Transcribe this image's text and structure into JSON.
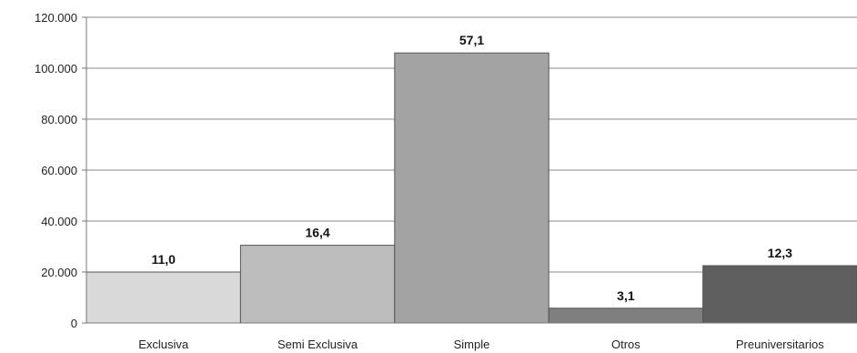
{
  "chart_data": {
    "type": "bar",
    "title": "",
    "xlabel": "",
    "ylabel": "",
    "categories": [
      "Exclusiva",
      "Semi Exclusiva",
      "Simple",
      "Otros",
      "Preuniversitarios"
    ],
    "values": [
      20000,
      30500,
      106000,
      5800,
      22500
    ],
    "data_labels": [
      "11,0",
      "16,4",
      "57,1",
      "3,1",
      "12,3"
    ],
    "colors": [
      "#d9d9d9",
      "#bdbdbd",
      "#a3a3a3",
      "#7f7f7f",
      "#5f5f5f"
    ],
    "ylim": [
      0,
      120000
    ],
    "yticks": [
      0,
      20000,
      40000,
      60000,
      80000,
      100000,
      120000
    ],
    "ytick_labels": [
      "0",
      "20.000",
      "40.000",
      "60.000",
      "80.000",
      "100.000",
      "120.000"
    ],
    "grid": true,
    "legend": "none"
  }
}
